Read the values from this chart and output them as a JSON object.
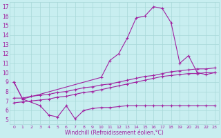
{
  "background_color": "#c8eef0",
  "grid_color": "#a8d8d8",
  "line_color": "#a020a0",
  "xlabel": "Windchill (Refroidissement éolien,°C)",
  "xlim": [
    -0.5,
    23.5
  ],
  "ylim": [
    4.5,
    17.5
  ],
  "yticks": [
    5,
    6,
    7,
    8,
    9,
    10,
    11,
    12,
    13,
    14,
    15,
    16,
    17
  ],
  "xticks": [
    0,
    1,
    2,
    3,
    4,
    5,
    6,
    7,
    8,
    9,
    10,
    11,
    12,
    13,
    14,
    15,
    16,
    17,
    18,
    19,
    20,
    21,
    22,
    23
  ],
  "line1_x": [
    0,
    1,
    3,
    4,
    5,
    6,
    7,
    8,
    9,
    10,
    11,
    12,
    13,
    14,
    15,
    16,
    17,
    18,
    19,
    20,
    21,
    22,
    23
  ],
  "line1_y": [
    9.0,
    7.2,
    6.5,
    5.5,
    5.3,
    6.5,
    5.1,
    6.0,
    6.2,
    6.3,
    6.3,
    6.4,
    6.5,
    6.5,
    6.5,
    6.5,
    6.5,
    6.5,
    6.5,
    6.5,
    6.5,
    6.5,
    6.5
  ],
  "line2_x": [
    0,
    1,
    10,
    11,
    12,
    13,
    14,
    15,
    16,
    17,
    18,
    19,
    20,
    21,
    22,
    23
  ],
  "line2_y": [
    9.0,
    7.2,
    9.5,
    11.3,
    12.0,
    13.7,
    15.8,
    16.0,
    17.0,
    16.8,
    15.3,
    11.0,
    11.8,
    10.0,
    9.8,
    10.0
  ],
  "line3_x": [
    0,
    1,
    2,
    3,
    4,
    5,
    6,
    7,
    8,
    9,
    10,
    11,
    12,
    13,
    14,
    15,
    16,
    17,
    18,
    19,
    20,
    21,
    22,
    23
  ],
  "line3_y": [
    7.3,
    7.3,
    7.5,
    7.6,
    7.7,
    7.9,
    8.0,
    8.2,
    8.4,
    8.5,
    8.7,
    8.8,
    9.0,
    9.2,
    9.4,
    9.6,
    9.7,
    9.9,
    10.1,
    10.2,
    10.3,
    10.4,
    10.4,
    10.5
  ],
  "line4_x": [
    0,
    1,
    2,
    3,
    4,
    5,
    6,
    7,
    8,
    9,
    10,
    11,
    12,
    13,
    14,
    15,
    16,
    17,
    18,
    19,
    20,
    21,
    22,
    23
  ],
  "line4_y": [
    6.8,
    6.9,
    7.0,
    7.1,
    7.2,
    7.4,
    7.5,
    7.7,
    7.9,
    8.0,
    8.2,
    8.4,
    8.6,
    8.8,
    9.0,
    9.2,
    9.4,
    9.6,
    9.7,
    9.8,
    9.9,
    9.9,
    10.0,
    10.0
  ]
}
